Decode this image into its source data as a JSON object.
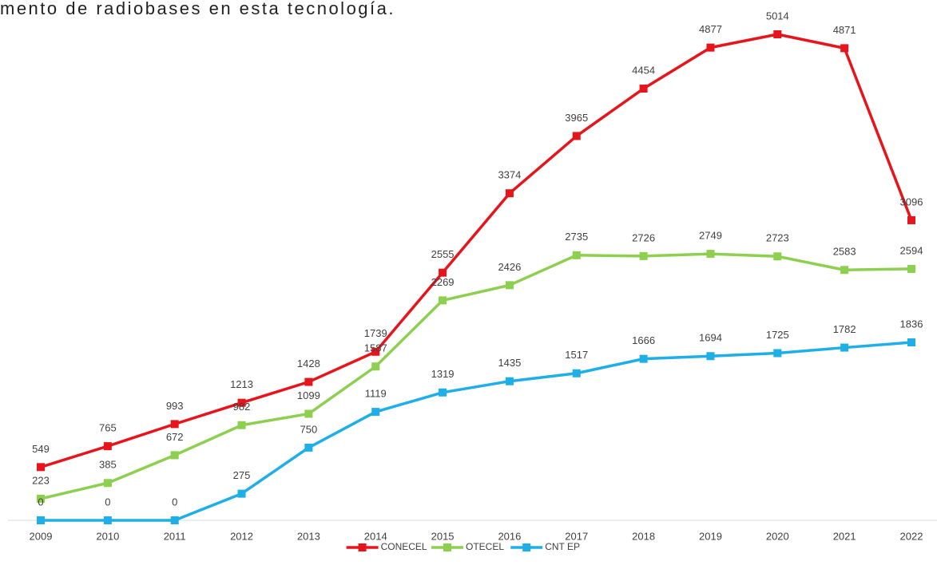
{
  "chart_data": {
    "type": "line",
    "title": "mento de radiobases en esta tecnología.",
    "categories": [
      "2009",
      "2010",
      "2011",
      "2012",
      "2013",
      "2014",
      "2015",
      "2016",
      "2017",
      "2018",
      "2019",
      "2020",
      "2021",
      "2022"
    ],
    "series": [
      {
        "name": "CONECEL",
        "color": "#e8141b",
        "values": [
          549,
          765,
          993,
          1213,
          1428,
          1739,
          2555,
          3374,
          3965,
          4454,
          4877,
          5014,
          4871,
          3096
        ]
      },
      {
        "name": "OTECEL",
        "color": "#8dcf4f",
        "values": [
          223,
          385,
          672,
          982,
          1099,
          1587,
          2269,
          2426,
          2735,
          2726,
          2749,
          2723,
          2583,
          2594
        ]
      },
      {
        "name": "CNT EP",
        "color": "#1eaee8",
        "values": [
          0,
          0,
          0,
          275,
          750,
          1119,
          1319,
          1435,
          1517,
          1666,
          1694,
          1725,
          1782,
          1836
        ]
      }
    ]
  }
}
